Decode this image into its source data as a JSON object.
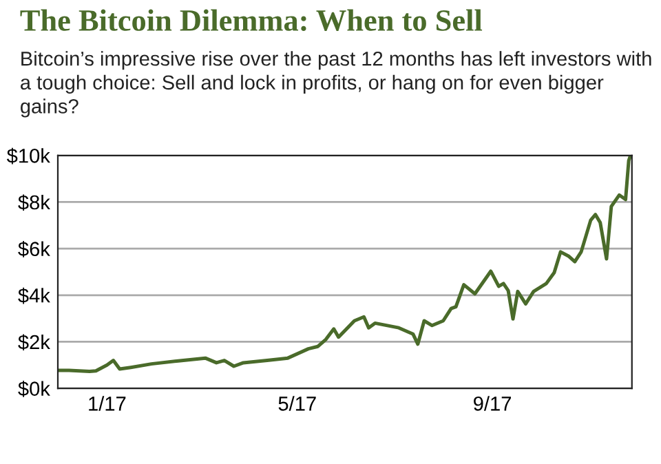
{
  "chart_data": {
    "type": "line",
    "title": "The Bitcoin Dilemma: When to Sell",
    "subtitle": "Bitcoin’s impressive rise over the past 12 months has left investors with a tough choice: Sell and lock in profits, or hang on for even bigger gains?",
    "x": [
      "2016-12-01",
      "2016-12-08",
      "2016-12-21",
      "2016-12-25",
      "2017-01-01",
      "2017-01-05",
      "2017-01-09",
      "2017-01-16",
      "2017-01-29",
      "2017-02-15",
      "2017-03-04",
      "2017-03-11",
      "2017-03-16",
      "2017-03-22",
      "2017-03-28",
      "2017-04-12",
      "2017-04-25",
      "2017-05-08",
      "2017-05-14",
      "2017-05-19",
      "2017-05-24",
      "2017-05-27",
      "2017-06-06",
      "2017-06-12",
      "2017-06-15",
      "2017-06-19",
      "2017-07-04",
      "2017-07-13",
      "2017-07-16",
      "2017-07-20",
      "2017-07-25",
      "2017-08-01",
      "2017-08-06",
      "2017-08-09",
      "2017-08-14",
      "2017-08-21",
      "2017-08-31",
      "2017-09-05",
      "2017-09-08",
      "2017-09-11",
      "2017-09-14",
      "2017-09-17",
      "2017-09-22",
      "2017-09-27",
      "2017-10-05",
      "2017-10-10",
      "2017-10-14",
      "2017-10-19",
      "2017-10-23",
      "2017-10-27",
      "2017-11-02",
      "2017-11-05",
      "2017-11-08",
      "2017-11-12",
      "2017-11-15",
      "2017-11-20",
      "2017-11-24",
      "2017-11-26",
      "2017-11-27"
    ],
    "series": [
      {
        "color": "#4a6b2a",
        "values": [
          770,
          770,
          730,
          750,
          1000,
          1200,
          830,
          900,
          1050,
          1180,
          1300,
          1100,
          1200,
          950,
          1100,
          1200,
          1300,
          1700,
          1800,
          2100,
          2550,
          2200,
          2900,
          3070,
          2600,
          2800,
          2600,
          2330,
          1900,
          2900,
          2700,
          2900,
          3430,
          3500,
          4450,
          4060,
          5030,
          4380,
          4500,
          4200,
          2980,
          4160,
          3630,
          4160,
          4500,
          4970,
          5860,
          5680,
          5440,
          5860,
          7220,
          7460,
          7120,
          5560,
          7810,
          8300,
          8110,
          9780,
          9980
        ]
      }
    ],
    "xlim": [
      "2016-12-01",
      "2017-11-28"
    ],
    "xticks": [
      {
        "value": "2017-01-01",
        "label": "1/17"
      },
      {
        "value": "2017-05-01",
        "label": "5/17"
      },
      {
        "value": "2017-09-01",
        "label": "9/17"
      }
    ],
    "ylim": [
      0,
      10000
    ],
    "yticks": [
      {
        "value": 0,
        "label": "$0k"
      },
      {
        "value": 2000,
        "label": "$2k"
      },
      {
        "value": 4000,
        "label": "$4k"
      },
      {
        "value": 6000,
        "label": "$6k"
      },
      {
        "value": 8000,
        "label": "$8k"
      },
      {
        "value": 10000,
        "label": "$10k"
      }
    ],
    "grid": "y",
    "marker": "none",
    "line_style": "solid",
    "legend": false
  }
}
